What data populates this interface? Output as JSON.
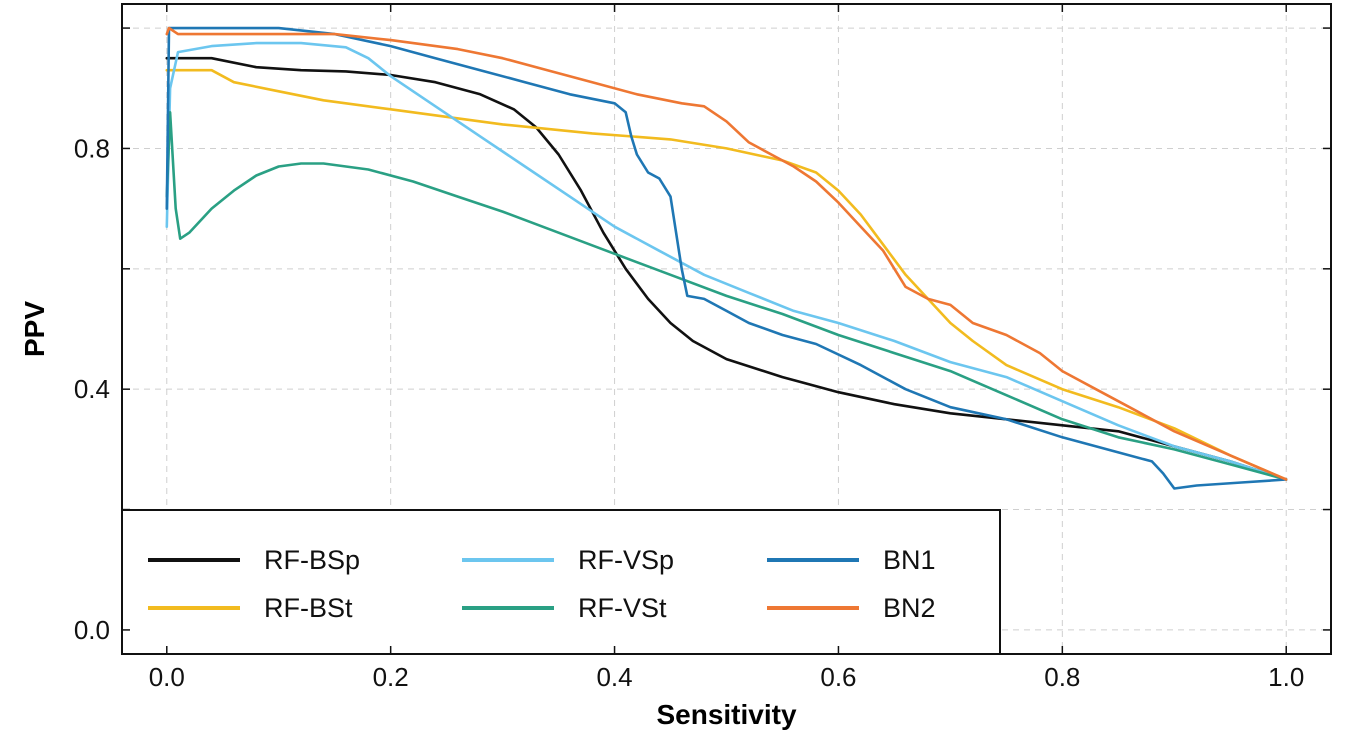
{
  "chart_data": {
    "type": "line",
    "title": "",
    "xlabel": "Sensitivity",
    "ylabel": "PPV",
    "xlim": [
      -0.04,
      1.04
    ],
    "ylim": [
      -0.04,
      1.04
    ],
    "xticks": [
      0.0,
      0.2,
      0.4,
      0.6,
      0.8,
      1.0
    ],
    "xtick_labels": [
      "0.0",
      "0.2",
      "0.4",
      "0.6",
      "0.8",
      "1.0"
    ],
    "yticks": [
      0.0,
      0.4,
      0.8
    ],
    "ytick_labels": [
      "0.0",
      "0.4",
      "0.8"
    ],
    "y_grid_extra": [
      0.2,
      0.6,
      1.0
    ],
    "grid": true,
    "grid_style": "dashed",
    "legend_position": "lower-left",
    "legend_columns": 3,
    "series": [
      {
        "name": "RF-BSp",
        "color": "#111111",
        "points": [
          [
            0,
            0.95
          ],
          [
            0.04,
            0.95
          ],
          [
            0.08,
            0.935
          ],
          [
            0.12,
            0.93
          ],
          [
            0.16,
            0.928
          ],
          [
            0.2,
            0.922
          ],
          [
            0.24,
            0.91
          ],
          [
            0.28,
            0.89
          ],
          [
            0.31,
            0.865
          ],
          [
            0.33,
            0.835
          ],
          [
            0.35,
            0.79
          ],
          [
            0.37,
            0.73
          ],
          [
            0.39,
            0.66
          ],
          [
            0.41,
            0.6
          ],
          [
            0.43,
            0.55
          ],
          [
            0.45,
            0.51
          ],
          [
            0.47,
            0.48
          ],
          [
            0.5,
            0.45
          ],
          [
            0.55,
            0.42
          ],
          [
            0.6,
            0.395
          ],
          [
            0.65,
            0.375
          ],
          [
            0.7,
            0.36
          ],
          [
            0.75,
            0.35
          ],
          [
            0.8,
            0.34
          ],
          [
            0.85,
            0.33
          ],
          [
            0.9,
            0.305
          ],
          [
            0.95,
            0.28
          ],
          [
            1.0,
            0.25
          ]
        ]
      },
      {
        "name": "RF-BSt",
        "color": "#f2bb1f",
        "points": [
          [
            0,
            0.93
          ],
          [
            0.04,
            0.93
          ],
          [
            0.06,
            0.91
          ],
          [
            0.1,
            0.895
          ],
          [
            0.14,
            0.88
          ],
          [
            0.2,
            0.865
          ],
          [
            0.3,
            0.84
          ],
          [
            0.38,
            0.825
          ],
          [
            0.45,
            0.815
          ],
          [
            0.5,
            0.8
          ],
          [
            0.55,
            0.78
          ],
          [
            0.58,
            0.76
          ],
          [
            0.6,
            0.73
          ],
          [
            0.62,
            0.69
          ],
          [
            0.64,
            0.64
          ],
          [
            0.66,
            0.59
          ],
          [
            0.68,
            0.55
          ],
          [
            0.7,
            0.51
          ],
          [
            0.72,
            0.48
          ],
          [
            0.75,
            0.44
          ],
          [
            0.8,
            0.4
          ],
          [
            0.85,
            0.37
          ],
          [
            0.9,
            0.335
          ],
          [
            0.95,
            0.29
          ],
          [
            1.0,
            0.25
          ]
        ]
      },
      {
        "name": "RF-VSp",
        "color": "#6cc6ef",
        "points": [
          [
            0,
            0.67
          ],
          [
            0.003,
            0.9
          ],
          [
            0.01,
            0.96
          ],
          [
            0.04,
            0.97
          ],
          [
            0.08,
            0.975
          ],
          [
            0.12,
            0.975
          ],
          [
            0.16,
            0.968
          ],
          [
            0.18,
            0.95
          ],
          [
            0.2,
            0.92
          ],
          [
            0.24,
            0.87
          ],
          [
            0.28,
            0.82
          ],
          [
            0.32,
            0.77
          ],
          [
            0.36,
            0.72
          ],
          [
            0.4,
            0.67
          ],
          [
            0.44,
            0.63
          ],
          [
            0.48,
            0.59
          ],
          [
            0.52,
            0.56
          ],
          [
            0.56,
            0.53
          ],
          [
            0.6,
            0.51
          ],
          [
            0.65,
            0.48
          ],
          [
            0.7,
            0.445
          ],
          [
            0.75,
            0.42
          ],
          [
            0.8,
            0.38
          ],
          [
            0.85,
            0.34
          ],
          [
            0.9,
            0.305
          ],
          [
            0.95,
            0.28
          ],
          [
            1.0,
            0.25
          ]
        ]
      },
      {
        "name": "RF-VSt",
        "color": "#2aa084",
        "points": [
          [
            0,
            0.72
          ],
          [
            0.003,
            0.86
          ],
          [
            0.008,
            0.7
          ],
          [
            0.012,
            0.65
          ],
          [
            0.02,
            0.66
          ],
          [
            0.04,
            0.7
          ],
          [
            0.06,
            0.73
          ],
          [
            0.08,
            0.755
          ],
          [
            0.1,
            0.77
          ],
          [
            0.12,
            0.775
          ],
          [
            0.14,
            0.775
          ],
          [
            0.18,
            0.765
          ],
          [
            0.22,
            0.745
          ],
          [
            0.26,
            0.72
          ],
          [
            0.3,
            0.695
          ],
          [
            0.35,
            0.66
          ],
          [
            0.4,
            0.625
          ],
          [
            0.45,
            0.59
          ],
          [
            0.5,
            0.555
          ],
          [
            0.55,
            0.525
          ],
          [
            0.6,
            0.49
          ],
          [
            0.65,
            0.46
          ],
          [
            0.7,
            0.43
          ],
          [
            0.75,
            0.39
          ],
          [
            0.8,
            0.35
          ],
          [
            0.85,
            0.32
          ],
          [
            0.9,
            0.3
          ],
          [
            0.95,
            0.275
          ],
          [
            1.0,
            0.25
          ]
        ]
      },
      {
        "name": "BN1",
        "color": "#1f77b4",
        "points": [
          [
            0,
            0.7
          ],
          [
            0.002,
            1.0
          ],
          [
            0.1,
            1.0
          ],
          [
            0.15,
            0.99
          ],
          [
            0.2,
            0.97
          ],
          [
            0.24,
            0.95
          ],
          [
            0.28,
            0.93
          ],
          [
            0.32,
            0.91
          ],
          [
            0.36,
            0.89
          ],
          [
            0.4,
            0.875
          ],
          [
            0.41,
            0.86
          ],
          [
            0.415,
            0.82
          ],
          [
            0.42,
            0.79
          ],
          [
            0.43,
            0.76
          ],
          [
            0.44,
            0.75
          ],
          [
            0.45,
            0.72
          ],
          [
            0.455,
            0.66
          ],
          [
            0.46,
            0.6
          ],
          [
            0.465,
            0.555
          ],
          [
            0.48,
            0.55
          ],
          [
            0.5,
            0.53
          ],
          [
            0.52,
            0.51
          ],
          [
            0.55,
            0.49
          ],
          [
            0.58,
            0.475
          ],
          [
            0.62,
            0.44
          ],
          [
            0.66,
            0.4
          ],
          [
            0.7,
            0.37
          ],
          [
            0.75,
            0.35
          ],
          [
            0.8,
            0.32
          ],
          [
            0.85,
            0.295
          ],
          [
            0.88,
            0.28
          ],
          [
            0.89,
            0.26
          ],
          [
            0.9,
            0.235
          ],
          [
            0.92,
            0.24
          ],
          [
            0.96,
            0.245
          ],
          [
            1.0,
            0.25
          ]
        ]
      },
      {
        "name": "BN2",
        "color": "#ee7733",
        "points": [
          [
            0,
            0.99
          ],
          [
            0.002,
            1.0
          ],
          [
            0.01,
            0.99
          ],
          [
            0.15,
            0.99
          ],
          [
            0.2,
            0.98
          ],
          [
            0.26,
            0.965
          ],
          [
            0.3,
            0.95
          ],
          [
            0.34,
            0.93
          ],
          [
            0.38,
            0.91
          ],
          [
            0.42,
            0.89
          ],
          [
            0.46,
            0.875
          ],
          [
            0.48,
            0.87
          ],
          [
            0.5,
            0.845
          ],
          [
            0.52,
            0.81
          ],
          [
            0.54,
            0.79
          ],
          [
            0.56,
            0.77
          ],
          [
            0.58,
            0.745
          ],
          [
            0.6,
            0.71
          ],
          [
            0.62,
            0.67
          ],
          [
            0.64,
            0.63
          ],
          [
            0.66,
            0.57
          ],
          [
            0.68,
            0.55
          ],
          [
            0.7,
            0.54
          ],
          [
            0.72,
            0.51
          ],
          [
            0.75,
            0.49
          ],
          [
            0.78,
            0.46
          ],
          [
            0.8,
            0.43
          ],
          [
            0.83,
            0.4
          ],
          [
            0.86,
            0.37
          ],
          [
            0.9,
            0.33
          ],
          [
            0.95,
            0.29
          ],
          [
            1.0,
            0.25
          ]
        ]
      }
    ]
  }
}
